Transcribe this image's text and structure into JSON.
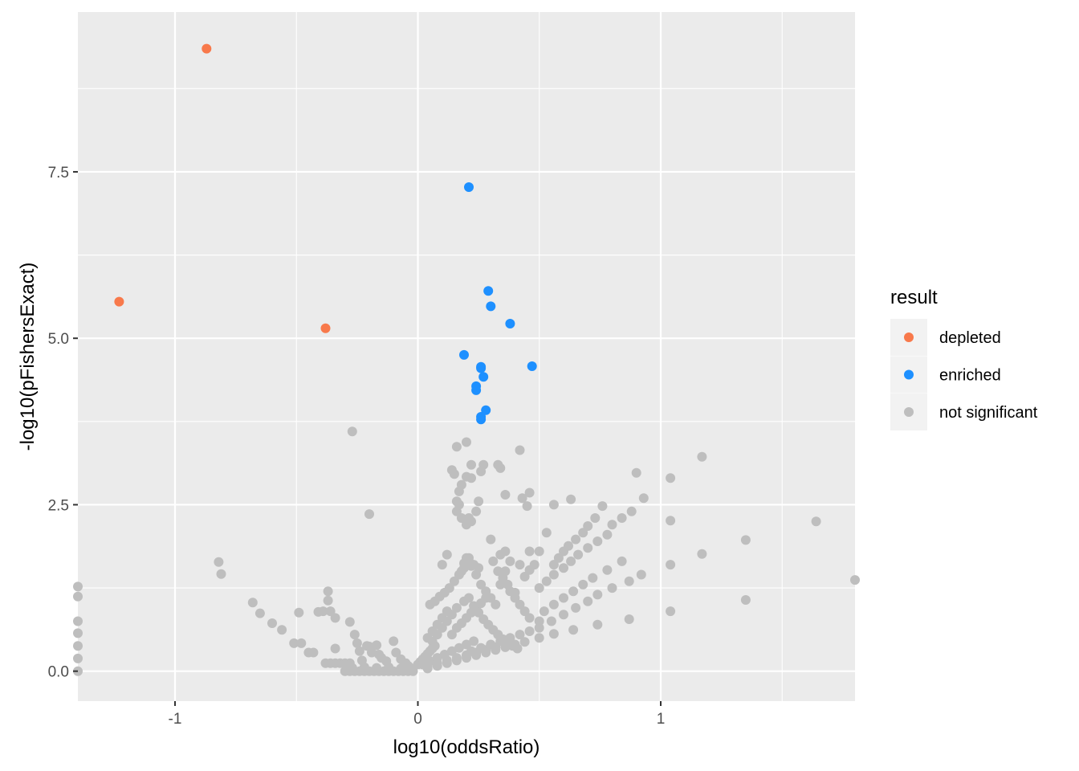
{
  "chart_data": {
    "type": "scatter",
    "xlabel": "log10(oddsRatio)",
    "ylabel": "-log10(pFishersExact)",
    "xlim": [
      -1.4,
      1.8
    ],
    "ylim": [
      -0.45,
      9.9
    ],
    "x_ticks": [
      {
        "value": -1,
        "label": "-1"
      },
      {
        "value": 0,
        "label": "0"
      },
      {
        "value": 1,
        "label": "1"
      }
    ],
    "x_minor_ticks": [
      -1.5,
      -0.5,
      0.5,
      1.5
    ],
    "y_ticks": [
      {
        "value": 0,
        "label": "0.0"
      },
      {
        "value": 2.5,
        "label": "2.5"
      },
      {
        "value": 5,
        "label": "5.0"
      },
      {
        "value": 7.5,
        "label": "7.5"
      }
    ],
    "y_minor_ticks": [
      1.25,
      3.75,
      6.25,
      8.75
    ],
    "grid": true,
    "panel_background": "#ebebeb",
    "legend": {
      "title": "result",
      "placement": "right",
      "entries": [
        {
          "label": "depleted",
          "color": "#f8794b"
        },
        {
          "label": "enriched",
          "color": "#1e90ff"
        },
        {
          "label": "not significant",
          "color": "#bebebe"
        }
      ]
    },
    "series": [
      {
        "name": "not significant",
        "color": "#bebebe",
        "points": [
          [
            -1.4,
            1.27
          ],
          [
            -1.4,
            1.12
          ],
          [
            -1.4,
            0.75
          ],
          [
            -1.4,
            0.57
          ],
          [
            -1.4,
            0.38
          ],
          [
            -1.4,
            0.19
          ],
          [
            -1.4,
            0.0
          ],
          [
            -0.82,
            1.64
          ],
          [
            -0.81,
            1.46
          ],
          [
            -0.68,
            1.03
          ],
          [
            -0.65,
            0.87
          ],
          [
            -0.6,
            0.72
          ],
          [
            -0.56,
            0.62
          ],
          [
            -0.51,
            0.42
          ],
          [
            -0.48,
            0.42
          ],
          [
            -0.49,
            0.88
          ],
          [
            -0.45,
            0.28
          ],
          [
            -0.43,
            0.28
          ],
          [
            -0.41,
            0.89
          ],
          [
            -0.39,
            0.9
          ],
          [
            -0.37,
            1.2
          ],
          [
            -0.37,
            1.06
          ],
          [
            -0.36,
            0.9
          ],
          [
            -0.34,
            0.8
          ],
          [
            -0.38,
            0.12
          ],
          [
            -0.36,
            0.12
          ],
          [
            -0.34,
            0.12
          ],
          [
            -0.32,
            0.12
          ],
          [
            -0.3,
            0.12
          ],
          [
            -0.28,
            0.12
          ],
          [
            -0.34,
            0.34
          ],
          [
            -0.28,
            0.74
          ],
          [
            -0.26,
            0.55
          ],
          [
            -0.25,
            0.42
          ],
          [
            -0.24,
            0.3
          ],
          [
            -0.23,
            0.16
          ],
          [
            -0.21,
            0.38
          ],
          [
            -0.2,
            0.37
          ],
          [
            -0.19,
            0.28
          ],
          [
            -0.17,
            0.39
          ],
          [
            -0.16,
            0.25
          ],
          [
            -0.15,
            0.2
          ],
          [
            -0.13,
            0.15
          ],
          [
            -0.1,
            0.45
          ],
          [
            -0.09,
            0.28
          ],
          [
            -0.07,
            0.18
          ],
          [
            -0.05,
            0.12
          ],
          [
            -0.04,
            0.08
          ],
          [
            -0.03,
            0.05
          ],
          [
            -0.27,
            3.6
          ],
          [
            -0.2,
            2.36
          ],
          [
            -0.3,
            0.0
          ],
          [
            -0.28,
            0.0
          ],
          [
            -0.26,
            0.0
          ],
          [
            -0.24,
            0.0
          ],
          [
            -0.22,
            0.0
          ],
          [
            -0.2,
            0.0
          ],
          [
            -0.18,
            0.0
          ],
          [
            -0.16,
            0.0
          ],
          [
            -0.14,
            0.0
          ],
          [
            -0.12,
            0.0
          ],
          [
            -0.1,
            0.0
          ],
          [
            -0.08,
            0.0
          ],
          [
            -0.06,
            0.0
          ],
          [
            -0.04,
            0.0
          ],
          [
            -0.02,
            0.0
          ],
          [
            -0.27,
            0.05
          ],
          [
            -0.22,
            0.06
          ],
          [
            -0.17,
            0.05
          ],
          [
            -0.12,
            0.06
          ],
          [
            -0.07,
            0.04
          ],
          [
            0.0,
            0.1
          ],
          [
            0.01,
            0.14
          ],
          [
            0.02,
            0.18
          ],
          [
            0.03,
            0.22
          ],
          [
            0.04,
            0.26
          ],
          [
            0.05,
            0.3
          ],
          [
            0.06,
            0.34
          ],
          [
            0.07,
            0.38
          ],
          [
            0.02,
            0.1
          ],
          [
            0.05,
            0.15
          ],
          [
            0.08,
            0.2
          ],
          [
            0.11,
            0.25
          ],
          [
            0.14,
            0.3
          ],
          [
            0.17,
            0.35
          ],
          [
            0.2,
            0.4
          ],
          [
            0.23,
            0.45
          ],
          [
            0.04,
            0.08
          ],
          [
            0.08,
            0.12
          ],
          [
            0.12,
            0.16
          ],
          [
            0.16,
            0.2
          ],
          [
            0.2,
            0.24
          ],
          [
            0.24,
            0.28
          ],
          [
            0.28,
            0.32
          ],
          [
            0.32,
            0.36
          ],
          [
            0.06,
            0.45
          ],
          [
            0.08,
            0.55
          ],
          [
            0.1,
            0.65
          ],
          [
            0.12,
            0.75
          ],
          [
            0.14,
            0.85
          ],
          [
            0.16,
            0.95
          ],
          [
            0.04,
            0.5
          ],
          [
            0.06,
            0.6
          ],
          [
            0.08,
            0.7
          ],
          [
            0.1,
            0.8
          ],
          [
            0.12,
            0.9
          ],
          [
            0.05,
            1.0
          ],
          [
            0.07,
            1.05
          ],
          [
            0.09,
            1.12
          ],
          [
            0.11,
            1.18
          ],
          [
            0.13,
            1.25
          ],
          [
            0.15,
            1.35
          ],
          [
            0.17,
            1.45
          ],
          [
            0.19,
            1.55
          ],
          [
            0.21,
            1.65
          ],
          [
            0.1,
            1.6
          ],
          [
            0.12,
            1.75
          ],
          [
            0.18,
            1.5
          ],
          [
            0.2,
            1.7
          ],
          [
            0.22,
            1.58
          ],
          [
            0.24,
            1.45
          ],
          [
            0.26,
            1.3
          ],
          [
            0.28,
            1.2
          ],
          [
            0.3,
            1.1
          ],
          [
            0.32,
            1.0
          ],
          [
            0.34,
            1.3
          ],
          [
            0.36,
            1.5
          ],
          [
            0.38,
            1.65
          ],
          [
            0.34,
            1.75
          ],
          [
            0.36,
            1.8
          ],
          [
            0.42,
            1.6
          ],
          [
            0.44,
            1.42
          ],
          [
            0.46,
            1.52
          ],
          [
            0.48,
            1.6
          ],
          [
            0.46,
            1.8
          ],
          [
            0.5,
            1.8
          ],
          [
            0.38,
            1.2
          ],
          [
            0.4,
            1.1
          ],
          [
            0.42,
            1.0
          ],
          [
            0.44,
            0.9
          ],
          [
            0.46,
            0.8
          ],
          [
            0.5,
            0.75
          ],
          [
            0.52,
            0.9
          ],
          [
            0.56,
            1.0
          ],
          [
            0.6,
            1.1
          ],
          [
            0.64,
            1.2
          ],
          [
            0.68,
            1.3
          ],
          [
            0.72,
            1.4
          ],
          [
            0.78,
            1.52
          ],
          [
            0.84,
            1.65
          ],
          [
            0.5,
            1.25
          ],
          [
            0.53,
            1.35
          ],
          [
            0.56,
            1.45
          ],
          [
            0.6,
            1.55
          ],
          [
            0.63,
            1.65
          ],
          [
            0.66,
            1.75
          ],
          [
            0.7,
            1.85
          ],
          [
            0.74,
            1.95
          ],
          [
            0.78,
            2.05
          ],
          [
            0.53,
            2.08
          ],
          [
            0.56,
            1.6
          ],
          [
            0.58,
            1.7
          ],
          [
            0.6,
            1.8
          ],
          [
            0.62,
            1.88
          ],
          [
            0.65,
            1.98
          ],
          [
            0.68,
            2.08
          ],
          [
            0.7,
            2.18
          ],
          [
            0.73,
            2.3
          ],
          [
            0.76,
            2.48
          ],
          [
            0.8,
            2.2
          ],
          [
            0.84,
            2.3
          ],
          [
            0.88,
            2.4
          ],
          [
            0.93,
            2.6
          ],
          [
            0.9,
            2.98
          ],
          [
            1.04,
            2.9
          ],
          [
            1.04,
            2.26
          ],
          [
            1.17,
            3.22
          ],
          [
            1.04,
            1.6
          ],
          [
            1.17,
            1.76
          ],
          [
            1.35,
            1.97
          ],
          [
            1.64,
            2.25
          ],
          [
            1.8,
            1.37
          ],
          [
            1.35,
            1.07
          ],
          [
            1.04,
            0.9
          ],
          [
            0.92,
            1.45
          ],
          [
            0.87,
            1.35
          ],
          [
            0.8,
            1.25
          ],
          [
            0.74,
            1.15
          ],
          [
            0.7,
            1.05
          ],
          [
            0.65,
            0.95
          ],
          [
            0.6,
            0.85
          ],
          [
            0.55,
            0.75
          ],
          [
            0.5,
            0.65
          ],
          [
            0.46,
            0.6
          ],
          [
            0.42,
            0.55
          ],
          [
            0.38,
            0.5
          ],
          [
            0.34,
            0.45
          ],
          [
            0.3,
            0.4
          ],
          [
            0.26,
            0.35
          ],
          [
            0.22,
            0.3
          ],
          [
            0.87,
            0.78
          ],
          [
            0.74,
            0.7
          ],
          [
            0.64,
            0.62
          ],
          [
            0.56,
            0.56
          ],
          [
            0.5,
            0.5
          ],
          [
            0.44,
            0.44
          ],
          [
            0.4,
            0.4
          ],
          [
            0.36,
            0.36
          ],
          [
            0.32,
            0.32
          ],
          [
            0.28,
            0.28
          ],
          [
            0.24,
            0.24
          ],
          [
            0.2,
            0.2
          ],
          [
            0.16,
            0.16
          ],
          [
            0.12,
            0.12
          ],
          [
            0.08,
            0.08
          ],
          [
            0.04,
            0.04
          ],
          [
            0.14,
            0.55
          ],
          [
            0.16,
            0.65
          ],
          [
            0.18,
            0.72
          ],
          [
            0.2,
            0.8
          ],
          [
            0.22,
            0.88
          ],
          [
            0.24,
            0.95
          ],
          [
            0.26,
            1.02
          ],
          [
            0.28,
            1.1
          ],
          [
            0.19,
            1.05
          ],
          [
            0.21,
            1.1
          ],
          [
            0.23,
            0.98
          ],
          [
            0.25,
            0.88
          ],
          [
            0.27,
            0.78
          ],
          [
            0.29,
            0.7
          ],
          [
            0.31,
            0.62
          ],
          [
            0.33,
            0.55
          ],
          [
            0.35,
            0.48
          ],
          [
            0.37,
            0.42
          ],
          [
            0.39,
            0.38
          ],
          [
            0.41,
            0.34
          ],
          [
            0.15,
            2.96
          ],
          [
            0.17,
            2.7
          ],
          [
            0.18,
            2.8
          ],
          [
            0.16,
            2.55
          ],
          [
            0.17,
            2.5
          ],
          [
            0.18,
            2.3
          ],
          [
            0.16,
            2.4
          ],
          [
            0.2,
            2.2
          ],
          [
            0.21,
            2.3
          ],
          [
            0.22,
            2.25
          ],
          [
            0.24,
            2.4
          ],
          [
            0.26,
            3.0
          ],
          [
            0.27,
            3.1
          ],
          [
            0.22,
            3.1
          ],
          [
            0.14,
            3.02
          ],
          [
            0.16,
            3.37
          ],
          [
            0.2,
            3.44
          ],
          [
            0.33,
            3.1
          ],
          [
            0.34,
            3.05
          ],
          [
            0.42,
            3.32
          ],
          [
            0.25,
            2.55
          ],
          [
            0.36,
            2.65
          ],
          [
            0.43,
            2.6
          ],
          [
            0.46,
            2.68
          ],
          [
            0.45,
            2.48
          ],
          [
            0.56,
            2.5
          ],
          [
            0.63,
            2.58
          ],
          [
            0.2,
            2.92
          ],
          [
            0.22,
            2.9
          ],
          [
            0.19,
            1.62
          ],
          [
            0.21,
            1.7
          ],
          [
            0.23,
            1.6
          ],
          [
            0.25,
            1.55
          ],
          [
            0.3,
            1.98
          ],
          [
            0.31,
            1.65
          ],
          [
            0.33,
            1.5
          ],
          [
            0.35,
            1.4
          ],
          [
            0.37,
            1.3
          ],
          [
            0.4,
            1.18
          ]
        ]
      },
      {
        "name": "enriched",
        "color": "#1e90ff",
        "points": [
          [
            0.21,
            7.27
          ],
          [
            0.29,
            5.71
          ],
          [
            0.3,
            5.48
          ],
          [
            0.38,
            5.22
          ],
          [
            0.19,
            4.75
          ],
          [
            0.26,
            4.57
          ],
          [
            0.26,
            4.55
          ],
          [
            0.47,
            4.58
          ],
          [
            0.27,
            4.42
          ],
          [
            0.24,
            4.28
          ],
          [
            0.24,
            4.22
          ],
          [
            0.28,
            3.92
          ],
          [
            0.26,
            3.82
          ],
          [
            0.26,
            3.78
          ]
        ]
      },
      {
        "name": "depleted",
        "color": "#f8794b",
        "points": [
          [
            -0.87,
            9.35
          ],
          [
            -1.23,
            5.55
          ],
          [
            -0.38,
            5.15
          ]
        ]
      }
    ]
  }
}
